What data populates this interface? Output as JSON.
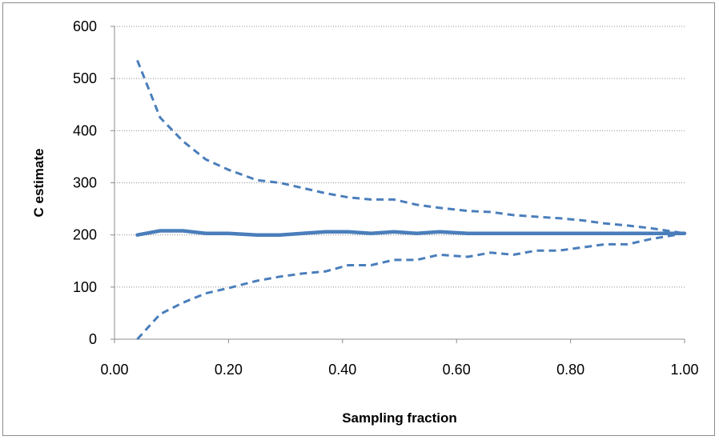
{
  "chart_data": {
    "type": "line",
    "title": "",
    "xlabel": "Sampling fraction",
    "ylabel": "C estimate",
    "xlim": [
      0.0,
      1.0
    ],
    "ylim": [
      0,
      600
    ],
    "x_ticks": [
      0.0,
      0.2,
      0.4,
      0.6,
      0.8,
      1.0
    ],
    "x_tick_labels": [
      "0.00",
      "0.20",
      "0.40",
      "0.60",
      "0.80",
      "1.00"
    ],
    "y_ticks": [
      0,
      100,
      200,
      300,
      400,
      500,
      600
    ],
    "y_tick_labels": [
      "0",
      "100",
      "200",
      "300",
      "400",
      "500",
      "600"
    ],
    "grid": "horizontal dotted",
    "legend": "none",
    "colors": {
      "series": "#4a7ebb"
    },
    "series": [
      {
        "style": "solid",
        "x": [
          0.04,
          0.08,
          0.12,
          0.16,
          0.2,
          0.25,
          0.29,
          0.33,
          0.37,
          0.41,
          0.45,
          0.49,
          0.53,
          0.57,
          0.62,
          0.66,
          0.7,
          0.74,
          0.78,
          0.82,
          0.86,
          0.9,
          0.94,
          1.0
        ],
        "values": [
          200,
          208,
          208,
          203,
          203,
          200,
          200,
          203,
          206,
          206,
          203,
          206,
          203,
          206,
          203,
          203,
          203,
          203,
          203,
          203,
          203,
          203,
          203,
          203
        ]
      },
      {
        "style": "dashed",
        "x": [
          0.04,
          0.08,
          0.12,
          0.16,
          0.2,
          0.25,
          0.29,
          0.33,
          0.37,
          0.41,
          0.45,
          0.49,
          0.53,
          0.57,
          0.62,
          0.66,
          0.7,
          0.74,
          0.78,
          0.82,
          0.86,
          0.9,
          0.94,
          1.0
        ],
        "values": [
          535,
          425,
          380,
          345,
          325,
          305,
          300,
          290,
          280,
          272,
          268,
          268,
          258,
          252,
          246,
          244,
          238,
          235,
          232,
          228,
          222,
          218,
          213,
          203
        ]
      },
      {
        "style": "dashed",
        "x": [
          0.04,
          0.08,
          0.12,
          0.16,
          0.2,
          0.25,
          0.29,
          0.33,
          0.37,
          0.41,
          0.45,
          0.49,
          0.53,
          0.57,
          0.62,
          0.66,
          0.7,
          0.74,
          0.78,
          0.82,
          0.86,
          0.9,
          0.94,
          1.0
        ],
        "values": [
          0,
          48,
          70,
          88,
          98,
          112,
          120,
          126,
          130,
          142,
          142,
          152,
          152,
          162,
          158,
          166,
          162,
          170,
          170,
          176,
          182,
          182,
          192,
          203
        ]
      }
    ]
  }
}
